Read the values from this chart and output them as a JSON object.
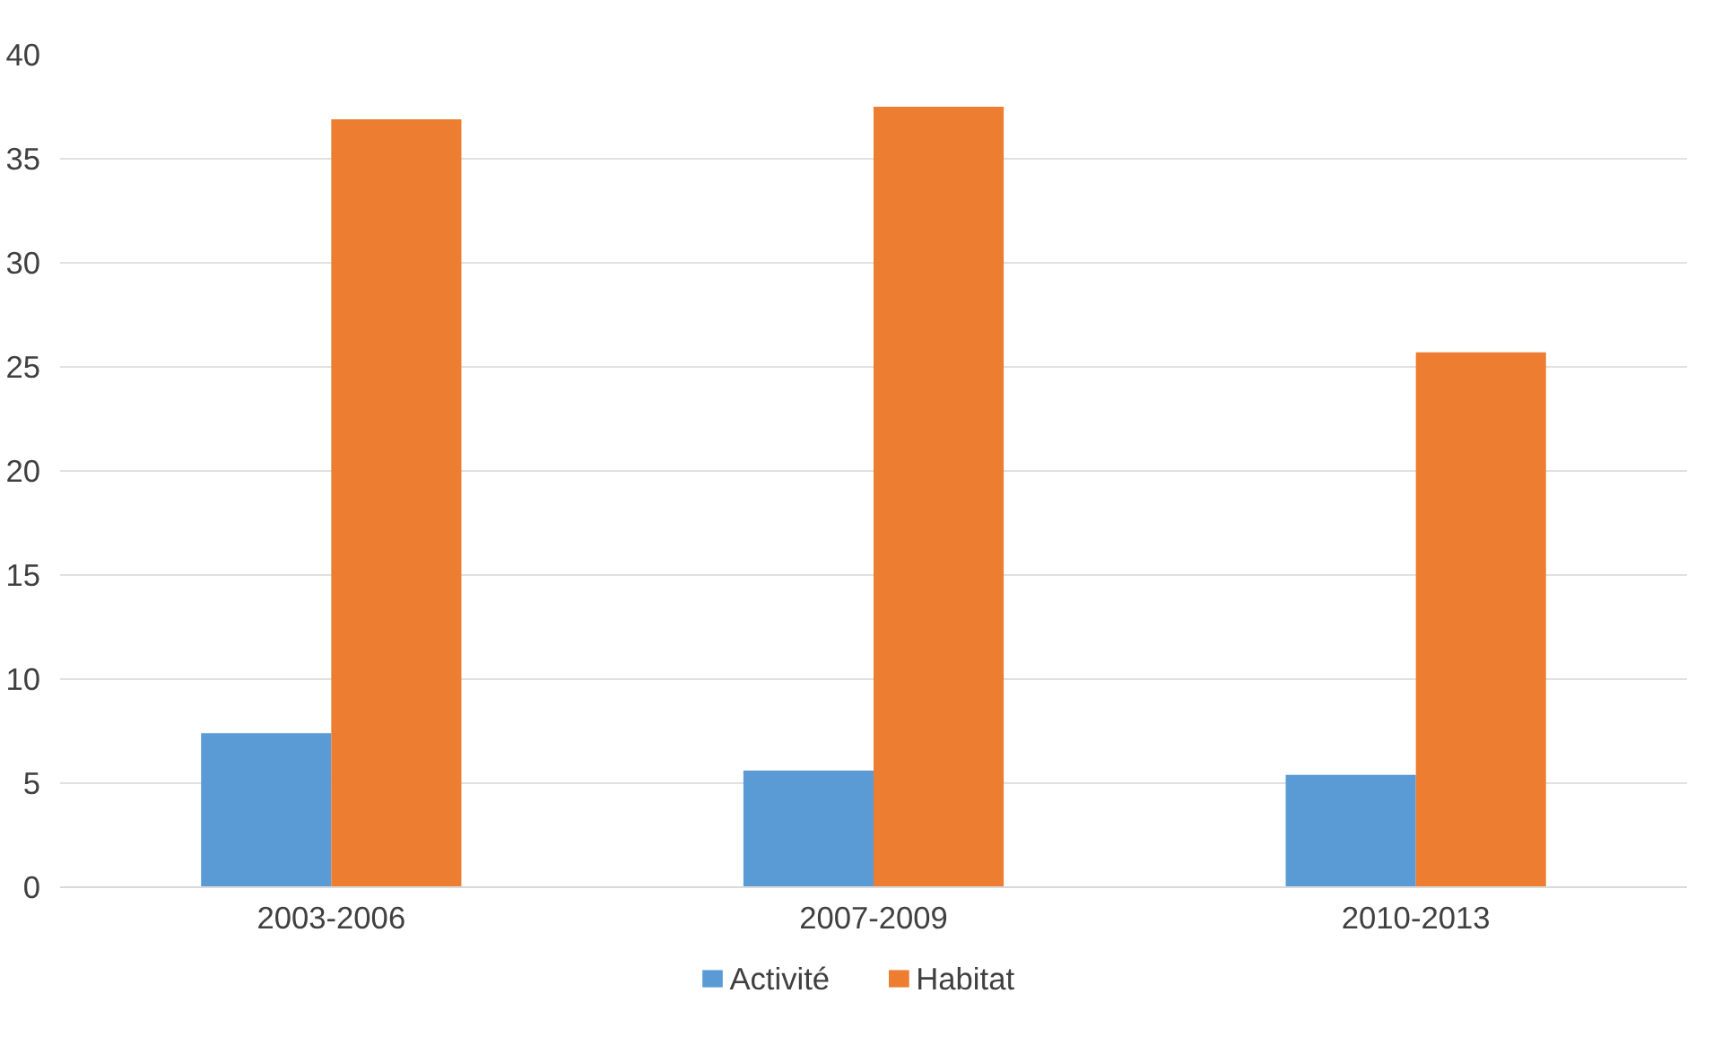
{
  "chart_data": {
    "type": "bar",
    "categories": [
      "2003-2006",
      "2007-2009",
      "2010-2013"
    ],
    "series": [
      {
        "name": "Activité",
        "color": "#5b9bd5",
        "values": [
          7.4,
          5.6,
          5.4
        ]
      },
      {
        "name": "Habitat",
        "color": "#ed7d31",
        "values": [
          36.9,
          37.5,
          25.7
        ]
      }
    ],
    "ylim": [
      0,
      40
    ],
    "yticks": [
      0,
      5,
      10,
      15,
      20,
      25,
      30,
      35,
      40
    ],
    "grid": "y",
    "legend": "bottom"
  }
}
